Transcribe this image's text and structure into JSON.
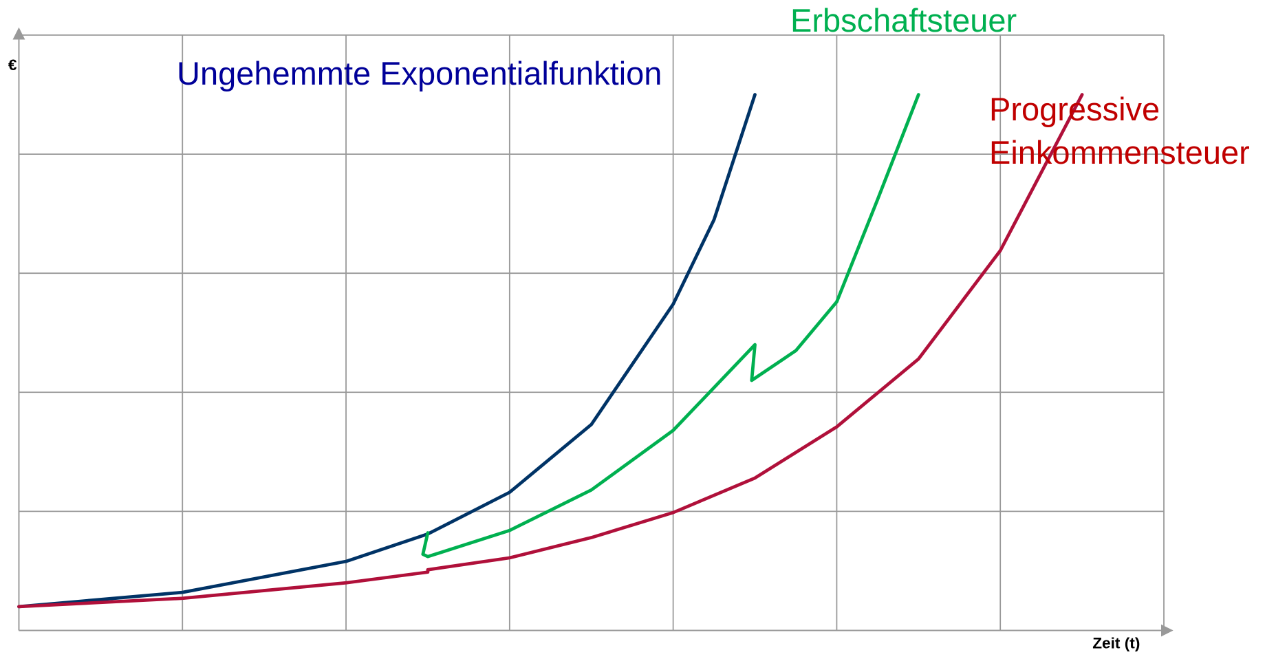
{
  "chart_data": {
    "type": "line",
    "y_label": "€",
    "x_label": "Zeit (t)",
    "xlim": [
      0,
      7
    ],
    "ylim": [
      0,
      5
    ],
    "xticks": [
      0,
      1,
      2,
      3,
      4,
      5,
      6,
      7
    ],
    "yticks": [
      0,
      1,
      2,
      3,
      4,
      5
    ],
    "grid": true,
    "series": [
      {
        "name": "Ungehemmte Exponentialfunktion",
        "color": "#003366",
        "label_color": "#000099",
        "x": [
          0,
          1,
          2,
          2.5,
          3,
          3.5,
          4,
          4.25,
          4.5
        ],
        "values": [
          0.2,
          0.32,
          0.58,
          0.81,
          1.16,
          1.73,
          2.74,
          3.45,
          4.5
        ]
      },
      {
        "name": "Erbschaftsteuer",
        "color": "#00b050",
        "label_color": "#00b050",
        "x": [
          2.5,
          2.47,
          2.5,
          3,
          3.5,
          4,
          4.5,
          4.48,
          4.75,
          5,
          5.25,
          5.5
        ],
        "values": [
          0.82,
          0.64,
          0.62,
          0.84,
          1.18,
          1.68,
          2.4,
          2.1,
          2.35,
          2.76,
          3.62,
          4.5
        ]
      },
      {
        "name": "Progressive Einkommensteuer",
        "color": "#b0103a",
        "label_color": "#c00000",
        "x": [
          0,
          1,
          2,
          2.5,
          2.5,
          3,
          3.5,
          4,
          4.5,
          5,
          5.5,
          6,
          6.5
        ],
        "values": [
          0.2,
          0.27,
          0.4,
          0.49,
          0.51,
          0.61,
          0.78,
          0.99,
          1.28,
          1.71,
          2.28,
          3.19,
          4.5
        ]
      }
    ]
  }
}
